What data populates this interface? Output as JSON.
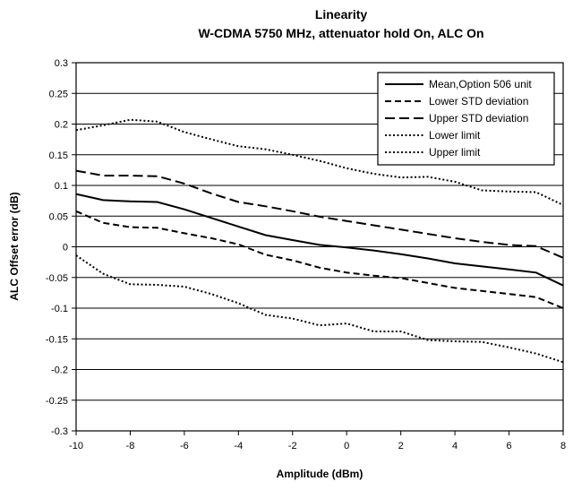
{
  "chart_data": {
    "type": "line",
    "title": "Linearity",
    "subtitle": "W-CDMA 5750 MHz, attenuator hold On, ALC On",
    "xlabel": "Amplitude (dBm)",
    "ylabel": "ALC Offset error (dB)",
    "xlim": [
      -10,
      8
    ],
    "ylim": [
      -0.3,
      0.3
    ],
    "xticks": [
      "-10",
      "-8",
      "-6",
      "-4",
      "-2",
      "0",
      "2",
      "4",
      "6",
      "8"
    ],
    "yticks": [
      "0.3",
      "0.25",
      "0.2",
      "0.15",
      "0.1",
      "0.05",
      "0",
      "-0.05",
      "-0.1",
      "-0.15",
      "-0.2",
      "-0.25",
      "-0.3"
    ],
    "grid": "horizontal",
    "legend_position": "top-right",
    "series": [
      {
        "name": "Mean,Option 506 unit",
        "style": "solid",
        "points": [
          [
            -10,
            0.086
          ],
          [
            -9,
            0.076
          ],
          [
            -8,
            0.074
          ],
          [
            -7,
            0.073
          ],
          [
            -6,
            0.061
          ],
          [
            -5,
            0.047
          ],
          [
            -4,
            0.033
          ],
          [
            -3,
            0.019
          ],
          [
            -2,
            0.011
          ],
          [
            -1,
            0.003
          ],
          [
            0,
            -0.001
          ],
          [
            1,
            -0.006
          ],
          [
            2,
            -0.012
          ],
          [
            3,
            -0.019
          ],
          [
            4,
            -0.027
          ],
          [
            5,
            -0.032
          ],
          [
            6,
            -0.037
          ],
          [
            7,
            -0.042
          ],
          [
            8,
            -0.063
          ]
        ]
      },
      {
        "name": "Lower STD deviation",
        "style": "dashed",
        "points": [
          [
            -10,
            0.058
          ],
          [
            -9,
            0.039
          ],
          [
            -8,
            0.032
          ],
          [
            -7,
            0.031
          ],
          [
            -6,
            0.022
          ],
          [
            -5,
            0.014
          ],
          [
            -4,
            0.004
          ],
          [
            -3,
            -0.013
          ],
          [
            -2,
            -0.022
          ],
          [
            -1,
            -0.034
          ],
          [
            0,
            -0.042
          ],
          [
            1,
            -0.047
          ],
          [
            2,
            -0.051
          ],
          [
            3,
            -0.059
          ],
          [
            4,
            -0.067
          ],
          [
            5,
            -0.072
          ],
          [
            6,
            -0.077
          ],
          [
            7,
            -0.082
          ],
          [
            8,
            -0.1
          ]
        ]
      },
      {
        "name": "Upper STD deviation",
        "style": "longdash",
        "points": [
          [
            -10,
            0.124
          ],
          [
            -9,
            0.116
          ],
          [
            -8,
            0.116
          ],
          [
            -7,
            0.115
          ],
          [
            -6,
            0.103
          ],
          [
            -5,
            0.087
          ],
          [
            -4,
            0.073
          ],
          [
            -3,
            0.066
          ],
          [
            -2,
            0.058
          ],
          [
            -1,
            0.049
          ],
          [
            0,
            0.042
          ],
          [
            1,
            0.035
          ],
          [
            2,
            0.028
          ],
          [
            3,
            0.021
          ],
          [
            4,
            0.014
          ],
          [
            5,
            0.008
          ],
          [
            6,
            0.003
          ],
          [
            7,
            0.001
          ],
          [
            8,
            -0.018
          ]
        ]
      },
      {
        "name": "Lower limit",
        "style": "dotted",
        "points": [
          [
            -10,
            -0.014
          ],
          [
            -9,
            -0.044
          ],
          [
            -8,
            -0.061
          ],
          [
            -7,
            -0.062
          ],
          [
            -6,
            -0.065
          ],
          [
            -5,
            -0.077
          ],
          [
            -4,
            -0.092
          ],
          [
            -3,
            -0.111
          ],
          [
            -2,
            -0.117
          ],
          [
            -1,
            -0.128
          ],
          [
            0,
            -0.125
          ],
          [
            1,
            -0.138
          ],
          [
            2,
            -0.138
          ],
          [
            3,
            -0.152
          ],
          [
            4,
            -0.154
          ],
          [
            5,
            -0.155
          ],
          [
            6,
            -0.164
          ],
          [
            7,
            -0.174
          ],
          [
            8,
            -0.188
          ]
        ]
      },
      {
        "name": "Upper limit",
        "style": "dotted",
        "points": [
          [
            -10,
            0.19
          ],
          [
            -9,
            0.198
          ],
          [
            -8,
            0.207
          ],
          [
            -7,
            0.204
          ],
          [
            -6,
            0.187
          ],
          [
            -5,
            0.175
          ],
          [
            -4,
            0.164
          ],
          [
            -3,
            0.159
          ],
          [
            -2,
            0.15
          ],
          [
            -1,
            0.14
          ],
          [
            0,
            0.128
          ],
          [
            1,
            0.119
          ],
          [
            2,
            0.113
          ],
          [
            3,
            0.114
          ],
          [
            4,
            0.106
          ],
          [
            5,
            0.092
          ],
          [
            6,
            0.09
          ],
          [
            7,
            0.089
          ],
          [
            8,
            0.068
          ]
        ]
      }
    ]
  }
}
